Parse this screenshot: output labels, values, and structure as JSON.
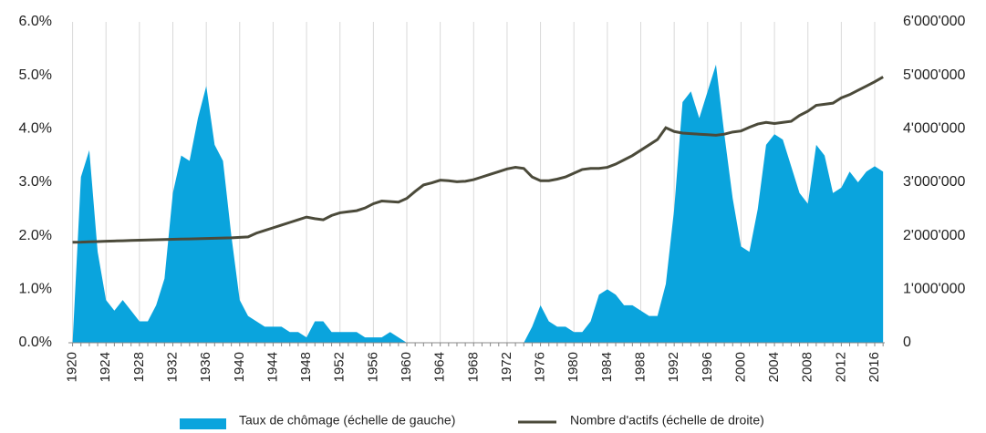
{
  "chart_data": {
    "type": "area-line",
    "x": [
      1920,
      1921,
      1922,
      1923,
      1924,
      1925,
      1926,
      1927,
      1928,
      1929,
      1930,
      1931,
      1932,
      1933,
      1934,
      1935,
      1936,
      1937,
      1938,
      1939,
      1940,
      1941,
      1942,
      1943,
      1944,
      1945,
      1946,
      1947,
      1948,
      1949,
      1950,
      1951,
      1952,
      1953,
      1954,
      1955,
      1956,
      1957,
      1958,
      1959,
      1960,
      1961,
      1962,
      1963,
      1964,
      1965,
      1966,
      1967,
      1968,
      1969,
      1970,
      1971,
      1972,
      1973,
      1974,
      1975,
      1976,
      1977,
      1978,
      1979,
      1980,
      1981,
      1982,
      1983,
      1984,
      1985,
      1986,
      1987,
      1988,
      1989,
      1990,
      1991,
      1992,
      1993,
      1994,
      1995,
      1996,
      1997,
      1998,
      1999,
      2000,
      2001,
      2002,
      2003,
      2004,
      2005,
      2006,
      2007,
      2008,
      2009,
      2010,
      2011,
      2012,
      2013,
      2014,
      2015,
      2016,
      2017
    ],
    "series": [
      {
        "name": "Taux de chômage (échelle de gauche)",
        "color": "#0aa4dd",
        "mark": "area",
        "values": [
          0,
          3.1,
          3.6,
          1.7,
          0.8,
          0.6,
          0.8,
          0.6,
          0.4,
          0.4,
          0.7,
          1.2,
          2.8,
          3.5,
          3.4,
          4.2,
          4.8,
          3.7,
          3.4,
          2.0,
          0.8,
          0.5,
          0.4,
          0.3,
          0.3,
          0.3,
          0.2,
          0.2,
          0.1,
          0.4,
          0.4,
          0.2,
          0.2,
          0.2,
          0.2,
          0.1,
          0.1,
          0.1,
          0.2,
          0.1,
          0,
          0,
          0,
          0,
          0,
          0,
          0,
          0,
          0,
          0,
          0,
          0,
          0,
          0,
          0,
          0.3,
          0.7,
          0.4,
          0.3,
          0.3,
          0.2,
          0.2,
          0.4,
          0.9,
          1.0,
          0.9,
          0.7,
          0.7,
          0.6,
          0.5,
          0.5,
          1.1,
          2.5,
          4.5,
          4.7,
          4.2,
          4.7,
          5.2,
          3.9,
          2.7,
          1.8,
          1.7,
          2.5,
          3.7,
          3.9,
          3.8,
          3.3,
          2.8,
          2.6,
          3.7,
          3.5,
          2.8,
          2.9,
          3.2,
          3.0,
          3.2,
          3.3,
          3.2
        ]
      },
      {
        "name": "Nombre d'actifs (échelle de droite)",
        "color": "#4b4a3a",
        "mark": "line",
        "axis": "y2",
        "values": [
          1880000,
          1882000,
          1888000,
          1893000,
          1898000,
          1903000,
          1908000,
          1913000,
          1918000,
          1922000,
          1926000,
          1930000,
          1934000,
          1938000,
          1942000,
          1946000,
          1950000,
          1954000,
          1958000,
          1962000,
          1970000,
          1980000,
          2050000,
          2100000,
          2150000,
          2200000,
          2250000,
          2300000,
          2350000,
          2320000,
          2300000,
          2380000,
          2430000,
          2450000,
          2470000,
          2520000,
          2600000,
          2650000,
          2640000,
          2630000,
          2700000,
          2830000,
          2950000,
          2990000,
          3040000,
          3030000,
          3010000,
          3020000,
          3050000,
          3100000,
          3150000,
          3200000,
          3250000,
          3280000,
          3260000,
          3100000,
          3030000,
          3030000,
          3060000,
          3100000,
          3170000,
          3240000,
          3260000,
          3260000,
          3280000,
          3340000,
          3420000,
          3500000,
          3600000,
          3700000,
          3800000,
          4020000,
          3950000,
          3920000,
          3910000,
          3900000,
          3890000,
          3880000,
          3900000,
          3940000,
          3960000,
          4030000,
          4090000,
          4120000,
          4100000,
          4120000,
          4140000,
          4250000,
          4330000,
          4440000,
          4460000,
          4480000,
          4580000,
          4640000,
          4720000,
          4800000,
          4880000,
          4970000
        ]
      }
    ],
    "xlim": [
      1919.5,
      2017.2
    ],
    "xticks": [
      1920,
      1924,
      1928,
      1932,
      1936,
      1940,
      1944,
      1948,
      1952,
      1956,
      1960,
      1964,
      1968,
      1972,
      1976,
      1980,
      1984,
      1988,
      1992,
      1996,
      2000,
      2004,
      2008,
      2012,
      2016
    ],
    "ylim": [
      0,
      6
    ],
    "yticks": [
      {
        "value": 0,
        "label": "0.0%"
      },
      {
        "value": 1,
        "label": "1.0%"
      },
      {
        "value": 2,
        "label": "2.0%"
      },
      {
        "value": 3,
        "label": "3.0%"
      },
      {
        "value": 4,
        "label": "4.0%"
      },
      {
        "value": 5,
        "label": "5.0%"
      },
      {
        "value": 6,
        "label": "6.0%"
      }
    ],
    "y2lim": [
      0,
      6000000
    ],
    "y2ticks": [
      0,
      {
        "value": 1000000,
        "label": "1'000'000"
      },
      {
        "value": 2000000,
        "label": "2'000'000"
      },
      {
        "value": 3000000,
        "label": "3'000'000"
      },
      {
        "value": 4000000,
        "label": "4'000'000"
      },
      {
        "value": 5000000,
        "label": "5'000'000"
      },
      {
        "value": 6000000,
        "label": "6'000'000"
      }
    ],
    "grid": "x"
  }
}
